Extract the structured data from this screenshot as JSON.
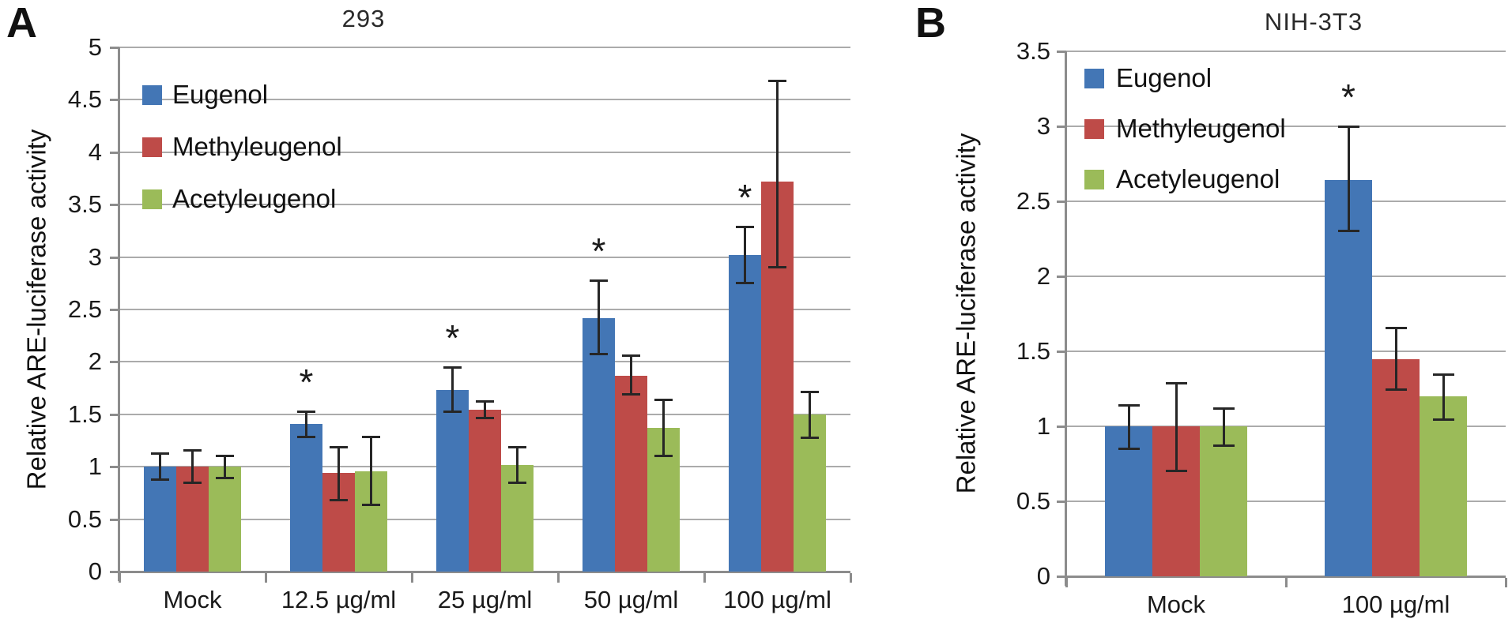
{
  "figure": {
    "significance_marker": "*",
    "colors": {
      "eugenol_blue": "#4376B5",
      "methyleugenol_red": "#BE4B48",
      "acetyleugenol_green": "#9BBB59",
      "gridline": "#ABABAB",
      "axis": "#8C8C8C",
      "error_bar": "#262626",
      "text": "#1A1A1A"
    },
    "panels": [
      {
        "panel_label": "A",
        "y_tick_labels": [
          "0",
          "0.5",
          "1",
          "1.5",
          "2",
          "2.5",
          "3",
          "3.5",
          "4",
          "4.5",
          "5"
        ],
        "chart_data": {
          "type": "bar",
          "title": "293",
          "xlabel": "",
          "ylabel": "Relative ARE-luciferase activity",
          "ylim": [
            0,
            5
          ],
          "ystep": 0.5,
          "grid": true,
          "legend_position": "upper-left-inside",
          "categories": [
            "Mock",
            "12.5 µg/ml",
            "25 µg/ml",
            "50 µg/ml",
            "100 µg/ml"
          ],
          "series": [
            {
              "name": "Eugenol",
              "color": "#4376B5",
              "values": [
                1.0,
                1.41,
                1.73,
                2.42,
                3.02
              ],
              "err_low": [
                0.87,
                1.28,
                1.52,
                2.07,
                2.75
              ],
              "err_high": [
                1.13,
                1.53,
                1.95,
                2.78,
                3.29
              ],
              "significant": [
                false,
                true,
                true,
                true,
                true
              ]
            },
            {
              "name": "Methyleugenol",
              "color": "#BE4B48",
              "values": [
                1.0,
                0.94,
                1.54,
                1.87,
                3.72
              ],
              "err_low": [
                0.84,
                0.68,
                1.46,
                1.69,
                2.9
              ],
              "err_high": [
                1.16,
                1.19,
                1.63,
                2.06,
                4.68
              ],
              "significant": [
                false,
                false,
                false,
                false,
                false
              ]
            },
            {
              "name": "Acetyleugenol",
              "color": "#9BBB59",
              "values": [
                1.0,
                0.96,
                1.02,
                1.37,
                1.5
              ],
              "err_low": [
                0.89,
                0.63,
                0.84,
                1.1,
                1.27
              ],
              "err_high": [
                1.11,
                1.29,
                1.19,
                1.64,
                1.72
              ],
              "significant": [
                false,
                false,
                false,
                false,
                false
              ]
            }
          ]
        }
      },
      {
        "panel_label": "B",
        "y_tick_labels": [
          "0",
          "0.5",
          "1",
          "1.5",
          "2",
          "2.5",
          "3",
          "3.5"
        ],
        "chart_data": {
          "type": "bar",
          "title": "NIH-3T3",
          "xlabel": "",
          "ylabel": "Relative ARE-luciferase activity",
          "ylim": [
            0,
            3.5
          ],
          "ystep": 0.5,
          "grid": true,
          "legend_position": "upper-left-inside",
          "categories": [
            "Mock",
            "100 µg/ml"
          ],
          "series": [
            {
              "name": "Eugenol",
              "color": "#4376B5",
              "values": [
                1.0,
                2.64
              ],
              "err_low": [
                0.85,
                2.3
              ],
              "err_high": [
                1.14,
                3.0
              ],
              "significant": [
                false,
                true
              ]
            },
            {
              "name": "Methyleugenol",
              "color": "#BE4B48",
              "values": [
                1.0,
                1.45
              ],
              "err_low": [
                0.7,
                1.24
              ],
              "err_high": [
                1.29,
                1.66
              ],
              "significant": [
                false,
                false
              ]
            },
            {
              "name": "Acetyleugenol",
              "color": "#9BBB59",
              "values": [
                1.0,
                1.2
              ],
              "err_low": [
                0.87,
                1.04
              ],
              "err_high": [
                1.12,
                1.35
              ],
              "significant": [
                false,
                false
              ]
            }
          ]
        }
      }
    ]
  }
}
